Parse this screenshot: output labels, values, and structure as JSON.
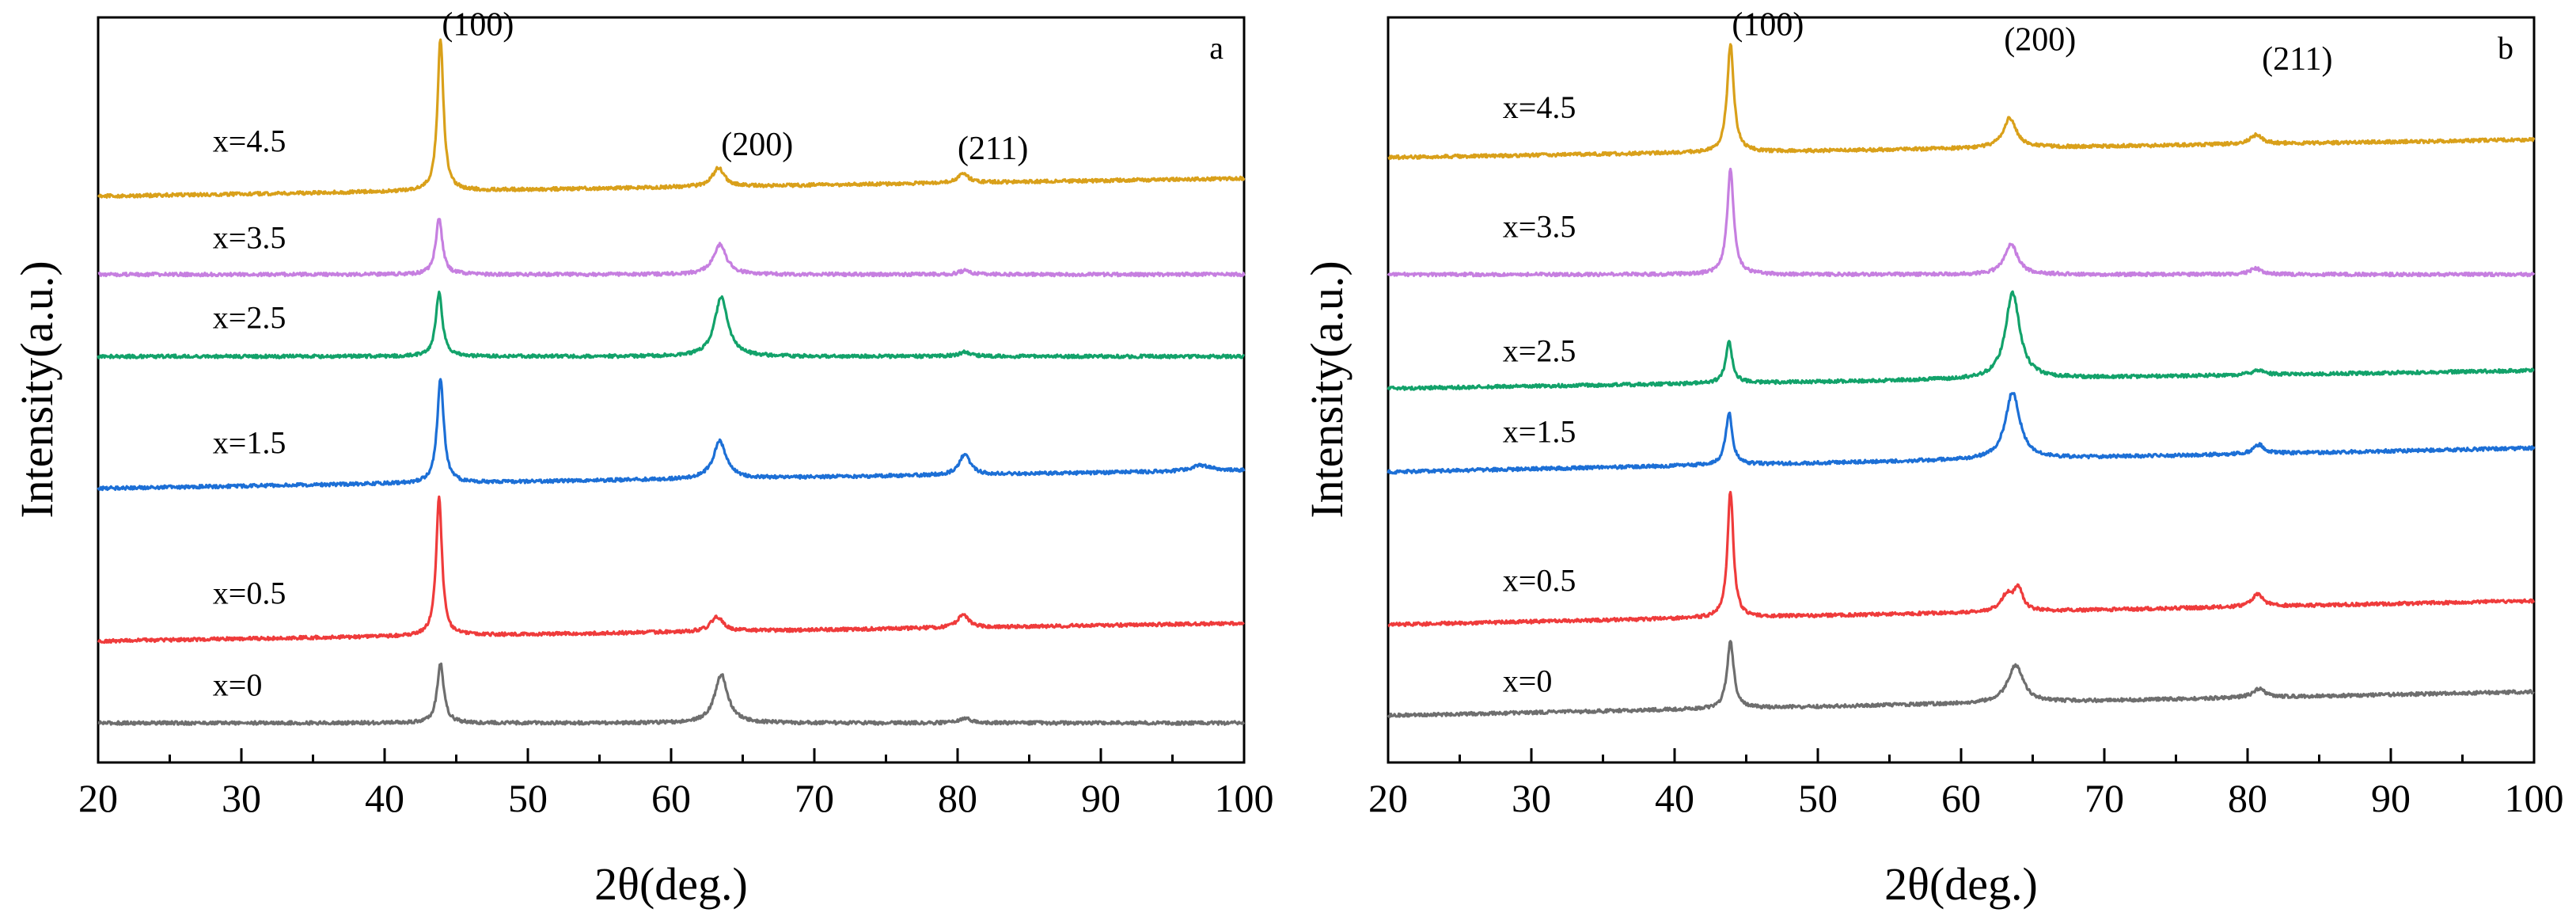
{
  "chart_data": [
    {
      "type": "line",
      "panel_label": "a",
      "xlabel": "2θ(deg.)",
      "ylabel": "Intensity(a.u.)",
      "xlim": [
        20,
        100
      ],
      "xticks": [
        "20",
        "30",
        "40",
        "50",
        "60",
        "70",
        "80",
        "90",
        "100"
      ],
      "x_minor_step": 5,
      "ylim": [
        0,
        100
      ],
      "peak_labels": [
        {
          "text": "(100)",
          "x": 44.0,
          "y": 97.6
        },
        {
          "text": "(200)",
          "x": 63.5,
          "y": 81.5
        },
        {
          "text": "(211)",
          "x": 80.0,
          "y": 81.0
        }
      ],
      "series": [
        {
          "name": "x=0",
          "color": "#6e6e6e",
          "baseline": 5.3,
          "slope": 0.0,
          "label_x": 28.0,
          "label_y": 9.0,
          "peaks": [
            {
              "x": 43.9,
              "h": 8.0,
              "w": 0.28
            },
            {
              "x": 63.5,
              "h": 6.5,
              "w": 0.55
            },
            {
              "x": 80.6,
              "h": 0.6,
              "w": 0.5
            }
          ]
        },
        {
          "name": "x=0.5",
          "color": "#ef3b3b",
          "baseline": 16.3,
          "slope": 0.03,
          "label_x": 28.0,
          "label_y": 21.3,
          "peaks": [
            {
              "x": 43.8,
              "h": 18.5,
              "w": 0.25
            },
            {
              "x": 63.2,
              "h": 2.0,
              "w": 0.5
            },
            {
              "x": 80.4,
              "h": 1.8,
              "w": 0.45
            }
          ]
        },
        {
          "name": "x=1.5",
          "color": "#1c6fd6",
          "baseline": 36.8,
          "slope": 0.03,
          "label_x": 28.0,
          "label_y": 41.5,
          "peaks": [
            {
              "x": 43.9,
              "h": 14.0,
              "w": 0.28
            },
            {
              "x": 63.4,
              "h": 5.0,
              "w": 0.55
            },
            {
              "x": 80.5,
              "h": 2.8,
              "w": 0.45
            },
            {
              "x": 97.0,
              "h": 0.8,
              "w": 0.8
            }
          ]
        },
        {
          "name": "x=2.5",
          "color": "#12a26a",
          "baseline": 54.5,
          "slope": 0.0,
          "label_x": 28.0,
          "label_y": 58.3,
          "peaks": [
            {
              "x": 43.8,
              "h": 8.5,
              "w": 0.28
            },
            {
              "x": 63.5,
              "h": 8.0,
              "w": 0.55
            },
            {
              "x": 80.5,
              "h": 0.6,
              "w": 0.5
            }
          ]
        },
        {
          "name": "x=3.5",
          "color": "#c67fe0",
          "baseline": 65.5,
          "slope": 0.0,
          "label_x": 28.0,
          "label_y": 69.0,
          "peaks": [
            {
              "x": 43.8,
              "h": 7.5,
              "w": 0.28
            },
            {
              "x": 63.4,
              "h": 4.0,
              "w": 0.55
            },
            {
              "x": 80.5,
              "h": 0.5,
              "w": 0.5
            }
          ]
        },
        {
          "name": "x=4.5",
          "color": "#d9a01a",
          "baseline": 76.0,
          "slope": 0.03,
          "label_x": 28.0,
          "label_y": 82.0,
          "peaks": [
            {
              "x": 43.9,
              "h": 20.5,
              "w": 0.25
            },
            {
              "x": 63.3,
              "h": 2.5,
              "w": 0.5
            },
            {
              "x": 80.4,
              "h": 1.2,
              "w": 0.45
            }
          ]
        }
      ]
    },
    {
      "type": "line",
      "panel_label": "b",
      "xlabel": "2θ(deg.)",
      "ylabel": "Intensity(a.u.)",
      "xlim": [
        20,
        100
      ],
      "xticks": [
        "20",
        "30",
        "40",
        "50",
        "60",
        "70",
        "80",
        "90",
        "100"
      ],
      "x_minor_step": 5,
      "ylim": [
        0,
        100
      ],
      "peak_labels": [
        {
          "text": "(100)",
          "x": 44.0,
          "y": 97.6
        },
        {
          "text": "(200)",
          "x": 63.0,
          "y": 95.6
        },
        {
          "text": "(211)",
          "x": 81.0,
          "y": 93.0
        }
      ],
      "series": [
        {
          "name": "x=0",
          "color": "#6e6e6e",
          "baseline": 6.3,
          "slope": 0.04,
          "label_x": 28.0,
          "label_y": 9.5,
          "peaks": [
            {
              "x": 43.9,
              "h": 9.0,
              "w": 0.28
            },
            {
              "x": 63.8,
              "h": 5.0,
              "w": 0.65
            },
            {
              "x": 80.8,
              "h": 1.2,
              "w": 0.5
            }
          ]
        },
        {
          "name": "x=0.5",
          "color": "#ef3b3b",
          "baseline": 18.5,
          "slope": 0.04,
          "label_x": 28.0,
          "label_y": 23.0,
          "peaks": [
            {
              "x": 43.9,
              "h": 17.0,
              "w": 0.25
            },
            {
              "x": 63.2,
              "h": 2.2,
              "w": 0.5
            },
            {
              "x": 64.0,
              "h": 3.0,
              "w": 0.35
            },
            {
              "x": 80.7,
              "h": 1.7,
              "w": 0.45
            }
          ]
        },
        {
          "name": "x=1.5",
          "color": "#1c6fd6",
          "baseline": 39.0,
          "slope": 0.04,
          "label_x": 28.0,
          "label_y": 43.0,
          "peaks": [
            {
              "x": 43.8,
              "h": 7.0,
              "w": 0.28
            },
            {
              "x": 63.6,
              "h": 9.0,
              "w": 0.6
            },
            {
              "x": 80.8,
              "h": 1.2,
              "w": 0.45
            }
          ]
        },
        {
          "name": "x=2.5",
          "color": "#12a26a",
          "baseline": 50.2,
          "slope": 0.03,
          "label_x": 28.0,
          "label_y": 53.8,
          "peaks": [
            {
              "x": 43.8,
              "h": 5.5,
              "w": 0.28
            },
            {
              "x": 63.6,
              "h": 11.5,
              "w": 0.6
            },
            {
              "x": 80.7,
              "h": 0.6,
              "w": 0.5
            }
          ]
        },
        {
          "name": "x=3.5",
          "color": "#c67fe0",
          "baseline": 65.5,
          "slope": 0.0,
          "label_x": 28.0,
          "label_y": 70.5,
          "peaks": [
            {
              "x": 43.9,
              "h": 14.0,
              "w": 0.28
            },
            {
              "x": 63.5,
              "h": 4.0,
              "w": 0.55
            },
            {
              "x": 80.6,
              "h": 0.8,
              "w": 0.5
            }
          ]
        },
        {
          "name": "x=4.5",
          "color": "#d9a01a",
          "baseline": 81.2,
          "slope": 0.03,
          "label_x": 28.0,
          "label_y": 86.5,
          "peaks": [
            {
              "x": 43.9,
              "h": 14.5,
              "w": 0.28
            },
            {
              "x": 63.4,
              "h": 4.0,
              "w": 0.55
            },
            {
              "x": 80.6,
              "h": 1.2,
              "w": 0.5
            }
          ]
        }
      ]
    }
  ]
}
